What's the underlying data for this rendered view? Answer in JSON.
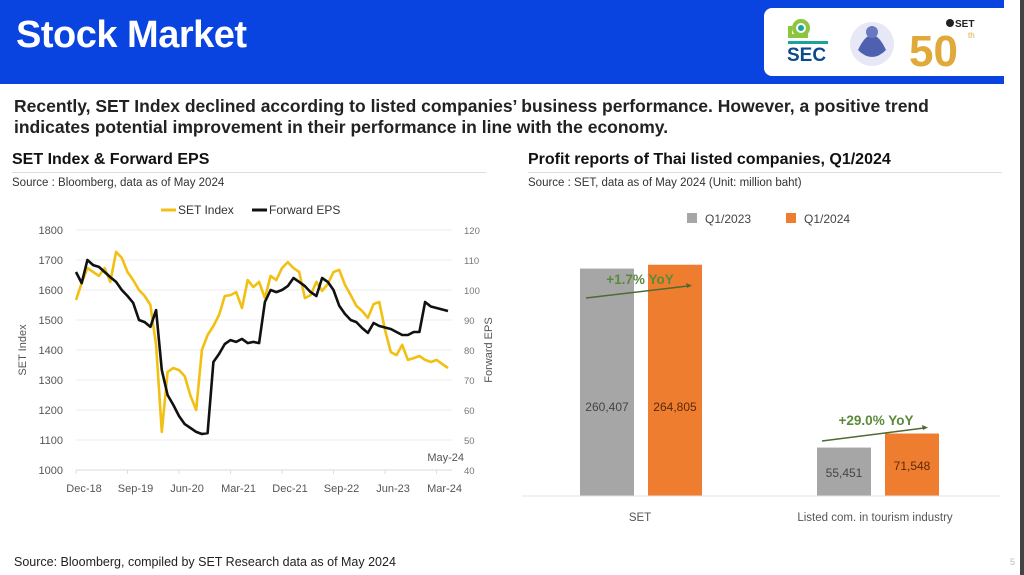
{
  "header": {
    "title": "Stock Market",
    "logos": {
      "sec": "SEC",
      "ministry": "MINISTRY OF FINANCE",
      "set50": "SET",
      "set50_number": "50",
      "set50_suffix": "th"
    },
    "brand_color": "#0a44e0"
  },
  "headline": "Recently, SET Index declined according to listed companies’ business performance. However, a positive trend indicates potential improvement in their performance in line with the economy.",
  "left_panel": {
    "title": "SET Index & Forward EPS",
    "source": "Source : Bloomberg, data as of May 2024"
  },
  "right_panel": {
    "title": "Profit reports of Thai listed companies, Q1/2024",
    "source": "Source : SET, data as of May 2024 (Unit: million baht)"
  },
  "footer": {
    "source": "Source: Bloomberg, compiled by SET Research data as of May 2024",
    "page": "5"
  },
  "chart_data": [
    {
      "type": "line",
      "title": "SET Index & Forward EPS",
      "ylabel": "SET Index",
      "y2label": "Forward EPS",
      "ylim": [
        1000,
        1800
      ],
      "y2lim": [
        40,
        120
      ],
      "yticks": [
        "1000",
        "1100",
        "1200",
        "1300",
        "1400",
        "1500",
        "1600",
        "1700",
        "1800"
      ],
      "y2ticks": [
        "40",
        "50",
        "60",
        "70",
        "80",
        "90",
        "100",
        "110",
        "120"
      ],
      "xticks": [
        "Dec-18",
        "Sep-19",
        "Jun-20",
        "Mar-21",
        "Dec-21",
        "Sep-22",
        "Jun-23",
        "Mar-24"
      ],
      "annotation": "May-24",
      "legend_position": "top",
      "grid": true,
      "x_start": "Dec-18",
      "x_end": "May-24",
      "series": [
        {
          "name": "SET Index",
          "axis": "left",
          "color": "#f2c012",
          "values": [
            1567,
            1623,
            1673,
            1660,
            1647,
            1673,
            1627,
            1727,
            1707,
            1660,
            1633,
            1600,
            1580,
            1550,
            1417,
            1127,
            1327,
            1340,
            1333,
            1313,
            1247,
            1200,
            1400,
            1450,
            1480,
            1517,
            1580,
            1583,
            1593,
            1540,
            1633,
            1610,
            1627,
            1573,
            1647,
            1633,
            1673,
            1693,
            1673,
            1660,
            1573,
            1583,
            1627,
            1597,
            1620,
            1660,
            1667,
            1617,
            1583,
            1547,
            1530,
            1507,
            1553,
            1560,
            1467,
            1393,
            1383,
            1417,
            1367,
            1373,
            1380,
            1367,
            1360,
            1367,
            1353,
            1340
          ]
        },
        {
          "name": "Forward EPS",
          "axis": "right",
          "color": "#111111",
          "values": [
            106,
            102.3,
            110,
            108.3,
            107.7,
            106,
            104.3,
            102.7,
            100,
            98,
            95.7,
            90,
            89.3,
            87.7,
            93.3,
            73.3,
            65,
            61.7,
            58,
            55.3,
            54,
            52.7,
            52,
            52.3,
            76,
            78.7,
            82,
            83.3,
            82.7,
            83.7,
            82.3,
            82.7,
            82.3,
            96,
            100,
            99.3,
            100,
            101.3,
            104,
            102.7,
            101.3,
            99.3,
            98,
            104,
            102.7,
            100,
            94.7,
            92,
            90,
            89.3,
            87.3,
            85.7,
            89,
            88,
            87.5,
            87,
            86,
            85,
            85,
            86,
            86,
            96,
            94.5,
            94,
            93.5,
            93
          ]
        }
      ]
    },
    {
      "type": "bar",
      "title": "Profit reports of Thai listed companies, Q1/2024",
      "unit": "million baht",
      "categories": [
        "SET",
        "Listed com. in tourism industry"
      ],
      "legend_position": "top",
      "series": [
        {
          "name": "Q1/2023",
          "color": "#a6a6a6",
          "values": [
            260407,
            55451
          ],
          "labels": [
            "260,407",
            "55,451"
          ]
        },
        {
          "name": "Q1/2024",
          "color": "#ef7d2f",
          "values": [
            264805,
            71548
          ],
          "labels": [
            "264,805",
            "71,548"
          ]
        }
      ],
      "annotations": [
        "+1.7% YoY",
        "+29.0% YoY"
      ],
      "annotation_color": "#5a8a3a"
    }
  ]
}
